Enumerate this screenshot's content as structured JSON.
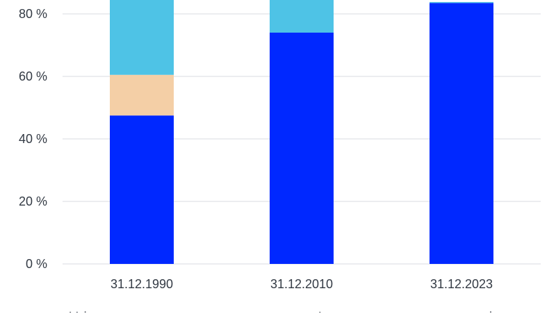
{
  "chart_data": {
    "type": "bar",
    "stacked": true,
    "categories": [
      "31.12.1990",
      "31.12.2010",
      "31.12.2023"
    ],
    "series": [
      {
        "color": "#0028ff",
        "values": [
          47.5,
          74.0,
          83.5
        ]
      },
      {
        "color": "#f4cfa6",
        "values": [
          13.0,
          0,
          0
        ]
      },
      {
        "color": "#4ec3e6",
        "values": [
          39.5,
          26.0,
          0.3
        ]
      }
    ],
    "ylim": [
      0,
      100
    ],
    "yticks": [
      0,
      20,
      40,
      60,
      80
    ],
    "ytick_labels": [
      "0 %",
      "20 %",
      "40 %",
      "60 %",
      "80 %"
    ],
    "grid": true,
    "legend_partial_text": [
      "Val",
      "L",
      "k"
    ]
  }
}
